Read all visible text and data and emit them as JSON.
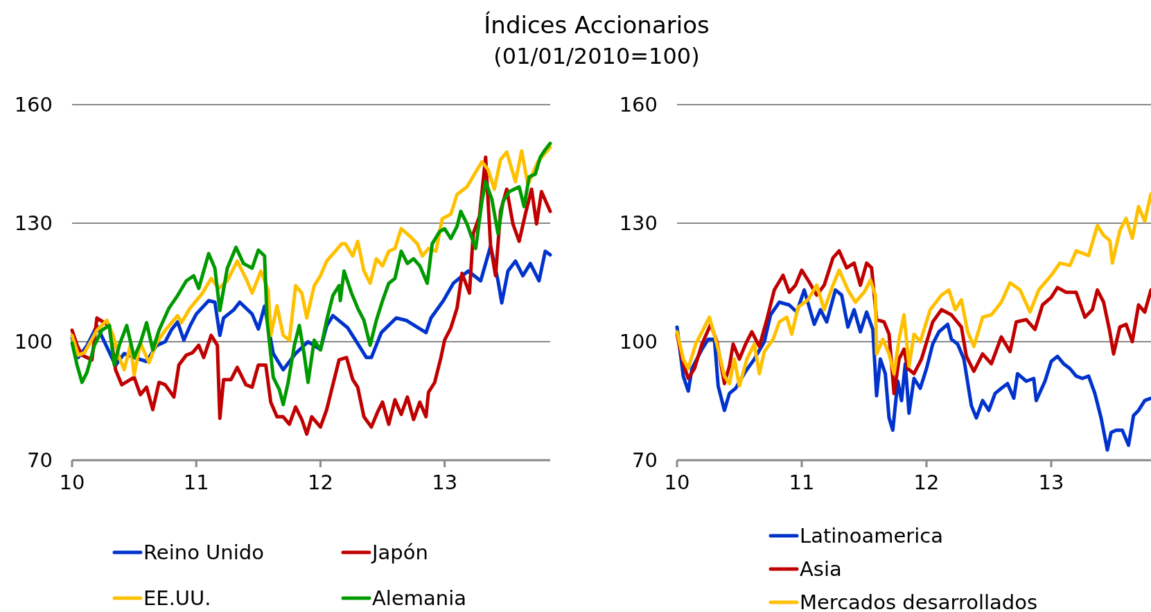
{
  "chart_data": [
    {
      "type": "line",
      "title": "Índices Accionarios",
      "subtitle": "(01/01/2010=100)",
      "xlim": [
        10,
        13.85
      ],
      "xticks": [
        10,
        11,
        12,
        13
      ],
      "ylim": [
        70,
        160
      ],
      "yticks": [
        70,
        100,
        130,
        160
      ],
      "grid": "y",
      "legend": "bottom",
      "series": [
        {
          "name": "Reino Unido",
          "color": "#0033cc",
          "x": [
            10.0,
            10.05,
            10.12,
            10.2,
            10.28,
            10.35,
            10.42,
            10.5,
            10.6,
            10.68,
            10.75,
            10.8,
            10.85,
            10.9,
            10.95,
            11.0,
            11.1,
            11.15,
            11.19,
            11.22,
            11.3,
            11.35,
            11.45,
            11.5,
            11.55,
            11.6,
            11.62,
            11.7,
            11.8,
            11.9,
            12.0,
            12.05,
            12.1,
            12.22,
            12.37,
            12.41,
            12.49,
            12.61,
            12.69,
            12.85,
            12.89,
            12.99,
            13.07,
            13.19,
            13.29,
            13.37,
            13.43,
            13.46,
            13.51,
            13.57,
            13.63,
            13.69,
            13.76,
            13.81,
            13.85
          ],
          "values": [
            101,
            96,
            99,
            104,
            null,
            94,
            97,
            96,
            95,
            99,
            100,
            103,
            105,
            100.4,
            104,
            107,
            110.4,
            110,
            101.6,
            106,
            108,
            110,
            107,
            103.2,
            109,
            null,
            97,
            92.9,
            97,
            100,
            98,
            104,
            106.6,
            103.5,
            96,
            96,
            102.3,
            106,
            105.4,
            102.3,
            106,
            110.4,
            114.8,
            117.9,
            115.4,
            124.2,
            115.4,
            109.8,
            117.9,
            120.4,
            116.7,
            119.8,
            115.4,
            122.9,
            122
          ]
        },
        {
          "name": "Japón",
          "color": "#c00000",
          "x": [
            10.0,
            10.04,
            10.08,
            10.16,
            10.2,
            10.3,
            10.35,
            10.4,
            10.5,
            10.55,
            10.6,
            10.65,
            10.7,
            10.75,
            10.82,
            10.86,
            10.92,
            10.97,
            11.02,
            11.06,
            11.12,
            11.17,
            11.19,
            11.22,
            11.28,
            11.33,
            11.4,
            11.45,
            11.5,
            11.56,
            11.6,
            11.65,
            11.7,
            11.75,
            11.8,
            11.85,
            11.89,
            11.93,
            12.0,
            12.05,
            12.1,
            12.15,
            12.21,
            12.26,
            12.3,
            12.35,
            12.41,
            12.46,
            12.5,
            12.55,
            12.6,
            12.65,
            12.7,
            12.75,
            12.8,
            12.85,
            12.87,
            12.92,
            12.97,
            13.0,
            13.05,
            13.1,
            13.14,
            13.2,
            13.23,
            13.28,
            13.33,
            13.37,
            13.41,
            13.45,
            13.5,
            13.55,
            13.6,
            13.65,
            13.7,
            13.74,
            13.78,
            13.85
          ],
          "values": [
            102.9,
            99.1,
            96.6,
            95.4,
            106,
            104,
            92.9,
            89.1,
            91,
            86.6,
            88.5,
            82.8,
            89.7,
            89.1,
            86,
            94.1,
            96.6,
            97.2,
            99.1,
            96,
            101.6,
            99.1,
            80.6,
            90.4,
            90.4,
            93.5,
            89.1,
            88.5,
            94.1,
            94.1,
            84.7,
            81,
            81,
            79.1,
            83.5,
            80.3,
            76.6,
            81,
            78.4,
            82.8,
            89.1,
            95.4,
            96,
            90.4,
            88.5,
            81,
            78.4,
            82.2,
            84.7,
            79.1,
            85.3,
            81.6,
            86,
            80.3,
            84.7,
            81,
            87.2,
            89.7,
            96,
            100.4,
            103.5,
            108.5,
            117.3,
            112.3,
            127.3,
            131.7,
            146.7,
            124.2,
            116.7,
            133,
            138.6,
            129.8,
            125.4,
            132.3,
            138.6,
            129.8,
            138,
            133
          ]
        },
        {
          "name": "EE.UU.",
          "color": "#ffc000",
          "x": [
            10.0,
            10.05,
            10.1,
            10.2,
            10.28,
            10.33,
            10.38,
            10.42,
            10.47,
            10.5,
            10.55,
            10.62,
            10.68,
            10.75,
            10.85,
            10.88,
            10.95,
            11.05,
            11.12,
            11.18,
            11.25,
            11.33,
            11.4,
            11.45,
            11.52,
            11.58,
            11.6,
            11.65,
            11.7,
            11.75,
            11.8,
            11.85,
            11.89,
            11.95,
            12.0,
            12.05,
            12.12,
            12.17,
            12.2,
            12.26,
            12.3,
            12.35,
            12.4,
            12.45,
            12.5,
            12.55,
            12.6,
            12.65,
            12.72,
            12.78,
            12.82,
            12.87,
            12.93,
            12.98,
            13.05,
            13.1,
            13.18,
            13.24,
            13.3,
            13.35,
            13.4,
            13.45,
            13.5,
            13.57,
            13.62,
            13.67,
            13.75,
            13.8,
            13.85
          ],
          "values": [
            101.6,
            96.6,
            97.2,
            102.9,
            105.4,
            101.6,
            96,
            92.9,
            99.1,
            91.6,
            99.7,
            94.7,
            99.7,
            102.9,
            106.6,
            104.8,
            108.5,
            112.3,
            116,
            113.5,
            115.4,
            120.4,
            116,
            112.3,
            117.9,
            112.9,
            101.6,
            109.1,
            101.6,
            100.4,
            114.2,
            112.3,
            106,
            114.2,
            116.7,
            120.4,
            122.9,
            124.8,
            124.8,
            121.7,
            125.4,
            117.9,
            114.8,
            121,
            119.2,
            122.9,
            123.6,
            128.6,
            126.7,
            124.8,
            121.7,
            123.6,
            122.9,
            131.1,
            132.3,
            137.3,
            139.2,
            142.4,
            145.5,
            143.6,
            138.6,
            146.1,
            148,
            140.5,
            148.3,
            139.8,
            145.5,
            147.4,
            149.2
          ]
        },
        {
          "name": "Alemania",
          "color": "#009900",
          "x": [
            10.0,
            10.04,
            10.08,
            10.12,
            10.18,
            10.24,
            10.3,
            10.34,
            10.38,
            10.44,
            10.5,
            10.55,
            10.6,
            10.65,
            10.7,
            10.78,
            10.85,
            10.92,
            10.98,
            11.02,
            11.1,
            11.15,
            11.19,
            11.25,
            11.32,
            11.38,
            11.45,
            11.5,
            11.55,
            11.57,
            11.62,
            11.67,
            11.7,
            11.74,
            11.79,
            11.83,
            11.87,
            11.9,
            11.95,
            12.0,
            12.05,
            12.1,
            12.15,
            12.16,
            12.19,
            12.25,
            12.3,
            12.35,
            12.4,
            12.45,
            12.5,
            12.55,
            12.6,
            12.65,
            12.7,
            12.75,
            12.8,
            12.86,
            12.9,
            12.96,
            13.0,
            13.05,
            13.1,
            13.13,
            13.18,
            13.25,
            13.3,
            13.33,
            13.38,
            13.43,
            13.47,
            13.52,
            13.6,
            13.64,
            13.68,
            13.73,
            13.77,
            13.81,
            13.85
          ],
          "values": [
            99.7,
            94.1,
            89.7,
            92.2,
            99.1,
            102.9,
            104.1,
            94.1,
            99.1,
            104.1,
            96,
            99.7,
            104.8,
            97.9,
            102.9,
            108.5,
            111.7,
            115.4,
            116.7,
            113.5,
            122.3,
            118.6,
            107.9,
            118.6,
            123.9,
            119.8,
            118.6,
            123.2,
            121.7,
            105.4,
            91,
            87.8,
            84.1,
            89.7,
            99.1,
            104.1,
            96.6,
            89.7,
            100.4,
            97.9,
            105.4,
            111.7,
            114.2,
            110.4,
            117.9,
            112.3,
            108.5,
            105.4,
            99.1,
            105.4,
            110.4,
            114.8,
            116,
            122.9,
            119.8,
            121,
            119.2,
            114.8,
            124.8,
            127.9,
            128.6,
            126.1,
            129.2,
            133,
            129.8,
            123.6,
            135.5,
            140.5,
            136.1,
            127.3,
            135.5,
            138,
            139.2,
            134.2,
            141.7,
            142.4,
            146.7,
            148.6,
            150.2
          ]
        }
      ]
    },
    {
      "type": "line",
      "xlim": [
        10,
        13.8
      ],
      "xticks": [
        10,
        11,
        12,
        13
      ],
      "ylim": [
        70,
        160
      ],
      "yticks": [
        70,
        100,
        130,
        160
      ],
      "grid": "y",
      "legend": "bottom",
      "series": [
        {
          "name": "Latinoamerica",
          "color": "#0033cc",
          "x": [
            10.0,
            10.05,
            10.09,
            10.12,
            10.2,
            10.25,
            10.3,
            10.33,
            10.38,
            10.42,
            10.47,
            10.55,
            10.62,
            10.7,
            10.75,
            10.82,
            10.9,
            10.96,
            11.02,
            11.1,
            11.15,
            11.2,
            11.27,
            11.32,
            11.37,
            11.42,
            11.47,
            11.52,
            11.57,
            11.6,
            11.63,
            11.67,
            11.7,
            11.73,
            11.77,
            11.8,
            11.83,
            11.86,
            11.9,
            11.95,
            12.0,
            12.05,
            12.1,
            12.17,
            12.2,
            12.25,
            12.3,
            12.36,
            12.4,
            12.45,
            12.5,
            12.55,
            12.6,
            12.65,
            12.7,
            12.73,
            12.8,
            12.86,
            12.88,
            12.95,
            13.0,
            13.05,
            13.1,
            13.15,
            13.2,
            13.25,
            13.3,
            13.35,
            13.4,
            13.45,
            13.48,
            13.52,
            13.57,
            13.62,
            13.66,
            13.7,
            13.75,
            13.8
          ],
          "values": [
            103.7,
            91.3,
            87.5,
            93.2,
            98.1,
            100.6,
            100.6,
            88.8,
            82.6,
            86.9,
            88.2,
            92.5,
            95.6,
            100,
            106.8,
            110,
            109.3,
            107.5,
            113.1,
            104.4,
            108.1,
            105,
            113.1,
            111.8,
            103.7,
            108.1,
            102.5,
            107.5,
            103.1,
            86.3,
            95.6,
            91.9,
            80.7,
            77.6,
            90,
            85.1,
            94.4,
            81.9,
            90.7,
            88.2,
            93.2,
            99.4,
            102.5,
            104.4,
            100.6,
            99.4,
            95.6,
            83.8,
            80.7,
            85.1,
            82.6,
            86.9,
            88.2,
            89.4,
            85.7,
            91.9,
            90,
            90.7,
            85.1,
            90,
            95,
            96.3,
            94.4,
            93.2,
            91.3,
            90.7,
            91.3,
            86.9,
            80.7,
            72.6,
            77,
            77.6,
            77.6,
            73.8,
            81.3,
            82.6,
            85.1,
            85.7
          ]
        },
        {
          "name": "Asia",
          "color": "#c00000",
          "x": [
            10.0,
            10.05,
            10.09,
            10.14,
            10.2,
            10.27,
            10.32,
            10.38,
            10.42,
            10.45,
            10.5,
            10.55,
            10.6,
            10.66,
            10.72,
            10.78,
            10.85,
            10.9,
            10.95,
            11.0,
            11.05,
            11.12,
            11.18,
            11.25,
            11.3,
            11.36,
            11.42,
            11.47,
            11.52,
            11.56,
            11.6,
            11.66,
            11.7,
            11.74,
            11.78,
            11.82,
            11.85,
            11.9,
            11.96,
            12.05,
            12.12,
            12.2,
            12.28,
            12.32,
            12.38,
            12.45,
            12.52,
            12.6,
            12.67,
            12.72,
            12.8,
            12.87,
            12.93,
            13.0,
            13.05,
            13.12,
            13.2,
            13.27,
            13.33,
            13.37,
            13.42,
            13.47,
            13.5,
            13.55,
            13.6,
            13.65,
            13.7,
            13.75,
            13.8
          ],
          "values": [
            101.9,
            94.4,
            90.7,
            93.2,
            99.4,
            104.4,
            100,
            89.4,
            93.8,
            99.4,
            95.6,
            99.4,
            102.5,
            98.8,
            105.6,
            113.1,
            116.8,
            112.5,
            114.3,
            118.1,
            115.6,
            111.8,
            114.3,
            121.2,
            123,
            118.7,
            119.9,
            114.3,
            119.9,
            118.7,
            105.6,
            105,
            101.9,
            86.9,
            95.6,
            98.1,
            93.2,
            91.9,
            95.6,
            105,
            108.1,
            106.8,
            103.7,
            96.3,
            92.5,
            96.9,
            94.4,
            101.2,
            97.5,
            105,
            105.6,
            103.1,
            109.3,
            111.2,
            113.7,
            112.5,
            112.5,
            106.2,
            108.1,
            113.1,
            110,
            102.5,
            96.9,
            103.7,
            104.4,
            100,
            109.3,
            107.5,
            113.1
          ]
        },
        {
          "name": "Mercados desarrollados",
          "color": "#ffc000",
          "x": [
            10.0,
            10.05,
            10.09,
            10.15,
            10.2,
            10.26,
            10.32,
            10.38,
            10.42,
            10.46,
            10.5,
            10.56,
            10.62,
            10.66,
            10.7,
            10.77,
            10.82,
            10.88,
            10.92,
            10.97,
            11.05,
            11.12,
            11.18,
            11.25,
            11.3,
            11.37,
            11.43,
            11.5,
            11.55,
            11.59,
            11.6,
            11.65,
            11.7,
            11.74,
            11.78,
            11.82,
            11.86,
            11.9,
            11.95,
            12.03,
            12.12,
            12.18,
            12.23,
            12.28,
            12.33,
            12.38,
            12.45,
            12.52,
            12.6,
            12.67,
            12.75,
            12.83,
            12.9,
            13.0,
            13.07,
            13.15,
            13.2,
            13.3,
            13.37,
            13.42,
            13.47,
            13.49,
            13.55,
            13.6,
            13.65,
            13.7,
            13.75,
            13.8
          ],
          "values": [
            102.5,
            95.6,
            93.2,
            99.4,
            102.5,
            106.2,
            99.4,
            91.3,
            89.4,
            95.6,
            88.8,
            95.6,
            99.4,
            91.9,
            97.5,
            100.6,
            105,
            106.2,
            101.9,
            108.7,
            110.6,
            114.3,
            108.1,
            114.3,
            118.1,
            113.1,
            110,
            112.5,
            115.6,
            111.8,
            96.9,
            100.6,
            96.9,
            91.9,
            100.6,
            106.8,
            93.8,
            101.9,
            100,
            108.1,
            111.8,
            113.1,
            108.1,
            110.6,
            102.5,
            98.8,
            106.2,
            106.8,
            110,
            114.9,
            113.1,
            107.5,
            113.1,
            116.8,
            119.9,
            119.3,
            123,
            121.8,
            129.4,
            126.9,
            125.6,
            119.9,
            128.1,
            131.2,
            126.2,
            134.2,
            130.5,
            137.4
          ]
        }
      ]
    }
  ]
}
